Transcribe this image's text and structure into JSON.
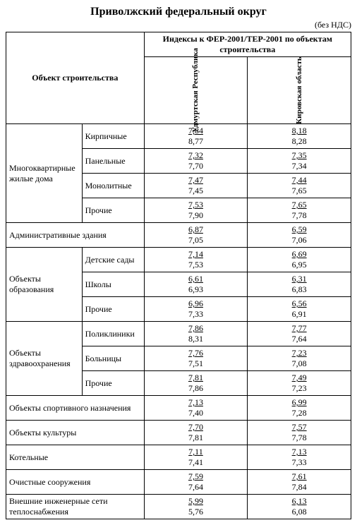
{
  "title": "Приволжский федеральный округ",
  "vat_note": "(без НДС)",
  "header": {
    "object": "Объект строительства",
    "indices": "Индексы к ФЕР-2001/ТЕР-2001 по объектам строительства",
    "cols": [
      "Удмуртская Республика",
      "Кировская область"
    ]
  },
  "groups": [
    {
      "label": "Многоквартирные жилые дома",
      "rows": [
        {
          "label": "Кирпичные",
          "v": [
            [
              "7,84",
              "8,77"
            ],
            [
              "8,18",
              "8,28"
            ]
          ]
        },
        {
          "label": "Панельные",
          "v": [
            [
              "7,32",
              "7,70"
            ],
            [
              "7,35",
              "7,34"
            ]
          ]
        },
        {
          "label": "Монолитные",
          "v": [
            [
              "7,47",
              "7,45"
            ],
            [
              "7,44",
              "7,65"
            ]
          ]
        },
        {
          "label": "Прочие",
          "v": [
            [
              "7,53",
              "7,90"
            ],
            [
              "7,65",
              "7,78"
            ]
          ]
        }
      ]
    },
    {
      "label": "Административные здания",
      "rows": [
        {
          "label": null,
          "v": [
            [
              "6,87",
              "7,05"
            ],
            [
              "6,59",
              "7,06"
            ]
          ]
        }
      ]
    },
    {
      "label": "Объекты образования",
      "rows": [
        {
          "label": "Детские сады",
          "v": [
            [
              "7,14",
              "7,53"
            ],
            [
              "6,69",
              "6,95"
            ]
          ]
        },
        {
          "label": "Школы",
          "v": [
            [
              "6,61",
              "6,93"
            ],
            [
              "6,31",
              "6,83"
            ]
          ]
        },
        {
          "label": "Прочие",
          "v": [
            [
              "6,96",
              "7,33"
            ],
            [
              "6,56",
              "6,91"
            ]
          ]
        }
      ]
    },
    {
      "label": "Объекты здравоохранения",
      "rows": [
        {
          "label": "Поликлиники",
          "v": [
            [
              "7,86",
              "8,31"
            ],
            [
              "7,77",
              "7,64"
            ]
          ]
        },
        {
          "label": "Больницы",
          "v": [
            [
              "7,76",
              "7,51"
            ],
            [
              "7,23",
              "7,08"
            ]
          ]
        },
        {
          "label": "Прочие",
          "v": [
            [
              "7,81",
              "7,86"
            ],
            [
              "7,49",
              "7,23"
            ]
          ]
        }
      ]
    },
    {
      "label": "Объекты спортивного назначения",
      "rows": [
        {
          "label": null,
          "v": [
            [
              "7,13",
              "7,40"
            ],
            [
              "6,99",
              "7,28"
            ]
          ]
        }
      ]
    },
    {
      "label": "Объекты культуры",
      "rows": [
        {
          "label": null,
          "v": [
            [
              "7,70",
              "7,81"
            ],
            [
              "7,57",
              "7,78"
            ]
          ]
        }
      ]
    },
    {
      "label": "Котельные",
      "rows": [
        {
          "label": null,
          "v": [
            [
              "7,11",
              "7,41"
            ],
            [
              "7,13",
              "7,33"
            ]
          ]
        }
      ]
    },
    {
      "label": "Очистные сооружения",
      "rows": [
        {
          "label": null,
          "v": [
            [
              "7,59",
              "7,64"
            ],
            [
              "7,61",
              "7,84"
            ]
          ]
        }
      ]
    },
    {
      "label": "Внешние инженерные сети теплоснабжения",
      "rows": [
        {
          "label": null,
          "v": [
            [
              "5,99",
              "5,76"
            ],
            [
              "6,13",
              "6,08"
            ]
          ]
        }
      ]
    }
  ]
}
